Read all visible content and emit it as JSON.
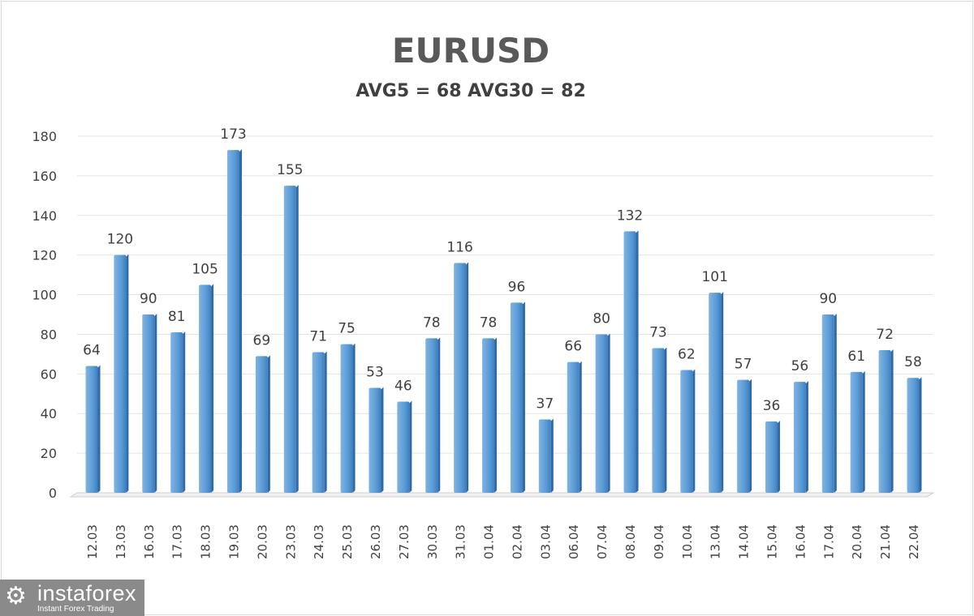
{
  "chart_data": {
    "type": "bar",
    "title": "EURUSD",
    "subtitle": "AVG5 = 68 AVG30 = 82",
    "xlabel": "",
    "ylabel": "",
    "ylim": [
      0,
      180
    ],
    "yticks": [
      0,
      20,
      40,
      60,
      80,
      100,
      120,
      140,
      160,
      180
    ],
    "grid": true,
    "categories": [
      "12.03",
      "13.03",
      "16.03",
      "17.03",
      "18.03",
      "19.03",
      "20.03",
      "23.03",
      "24.03",
      "25.03",
      "26.03",
      "27.03",
      "30.03",
      "31.03",
      "01.04",
      "02.04",
      "03.04",
      "06.04",
      "07.04",
      "08.04",
      "09.04",
      "10.04",
      "13.04",
      "14.04",
      "15.04",
      "16.04",
      "17.04",
      "20.04",
      "21.04",
      "22.04"
    ],
    "values": [
      64,
      120,
      90,
      81,
      105,
      173,
      69,
      155,
      71,
      75,
      53,
      46,
      78,
      116,
      78,
      96,
      37,
      66,
      80,
      132,
      73,
      62,
      101,
      57,
      36,
      56,
      90,
      61,
      72,
      58
    ],
    "bar_color": "#5b9bd5"
  },
  "logo": {
    "name": "instaforex",
    "tagline": "Instant Forex Trading"
  }
}
